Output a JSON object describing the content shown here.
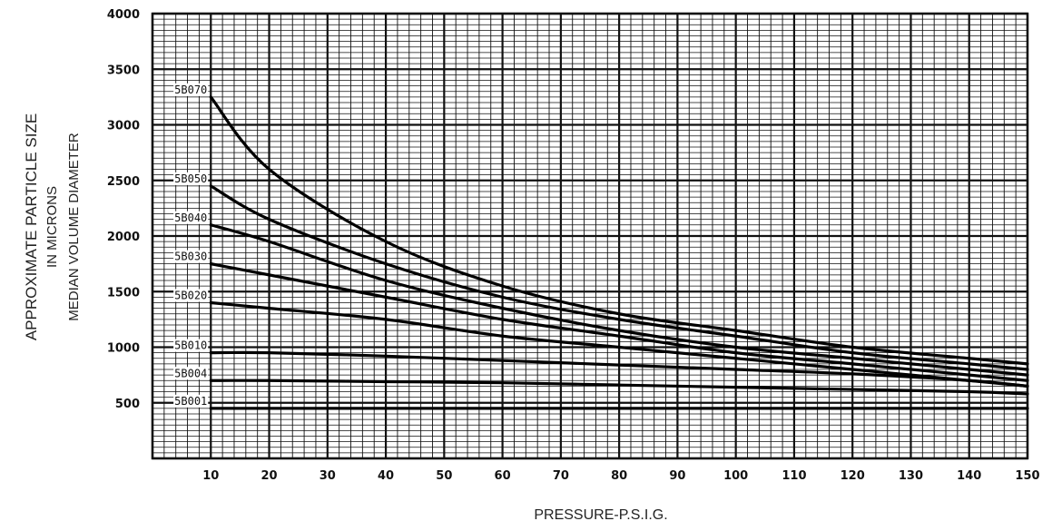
{
  "chart_data": {
    "type": "line",
    "xlabel": "PRESSURE-P.S.I.G.",
    "ylabel_lines": [
      "APPROXIMATE PARTICLE SIZE",
      "IN MICRONS",
      "MEDIAN VOLUME DIAMETER"
    ],
    "xlim": [
      0,
      150
    ],
    "ylim": [
      0,
      4000
    ],
    "x_ticks": [
      10,
      20,
      30,
      40,
      50,
      60,
      70,
      80,
      90,
      100,
      110,
      120,
      130,
      140,
      150
    ],
    "x_tick_labels": [
      "10",
      "20",
      "30",
      "40",
      "50",
      "60",
      "70",
      "80",
      "90",
      "100",
      "110",
      "120",
      "130",
      "140",
      "150"
    ],
    "y_ticks": [
      500,
      1000,
      1500,
      2000,
      2500,
      3000,
      3500,
      4000
    ],
    "y_tick_labels": [
      "500",
      "1000",
      "1500",
      "2000",
      "2500",
      "3000",
      "3500",
      "4000"
    ],
    "grid": true,
    "series": [
      {
        "name": "5B070",
        "x": [
          10,
          20,
          40,
          60,
          80,
          100,
          120,
          140,
          150
        ],
        "values": [
          3250,
          2600,
          1950,
          1550,
          1300,
          1150,
          1000,
          900,
          850
        ]
      },
      {
        "name": "5B050",
        "x": [
          10,
          20,
          40,
          60,
          80,
          100,
          120,
          140,
          150
        ],
        "values": [
          2450,
          2150,
          1750,
          1450,
          1250,
          1100,
          950,
          850,
          800
        ]
      },
      {
        "name": "5B040",
        "x": [
          10,
          20,
          40,
          60,
          80,
          100,
          120,
          140,
          150
        ],
        "values": [
          2100,
          1950,
          1600,
          1350,
          1150,
          1000,
          900,
          800,
          750
        ]
      },
      {
        "name": "5B030",
        "x": [
          10,
          20,
          40,
          60,
          80,
          100,
          120,
          140,
          150
        ],
        "values": [
          1750,
          1650,
          1450,
          1250,
          1100,
          950,
          850,
          750,
          700
        ]
      },
      {
        "name": "5B020",
        "x": [
          10,
          20,
          40,
          60,
          80,
          100,
          120,
          140,
          150
        ],
        "values": [
          1400,
          1350,
          1250,
          1100,
          1000,
          900,
          800,
          700,
          650
        ]
      },
      {
        "name": "5B010",
        "x": [
          10,
          20,
          40,
          60,
          80,
          100,
          120,
          140,
          150
        ],
        "values": [
          950,
          950,
          920,
          880,
          840,
          800,
          760,
          700,
          650
        ]
      },
      {
        "name": "5B004",
        "x": [
          10,
          20,
          40,
          60,
          80,
          100,
          120,
          140,
          150
        ],
        "values": [
          700,
          700,
          690,
          680,
          660,
          640,
          620,
          600,
          580
        ]
      },
      {
        "name": "5B001",
        "x": [
          10,
          20,
          40,
          60,
          80,
          100,
          120,
          140,
          150
        ],
        "values": [
          450,
          450,
          450,
          450,
          450,
          450,
          450,
          450,
          450
        ]
      }
    ]
  }
}
